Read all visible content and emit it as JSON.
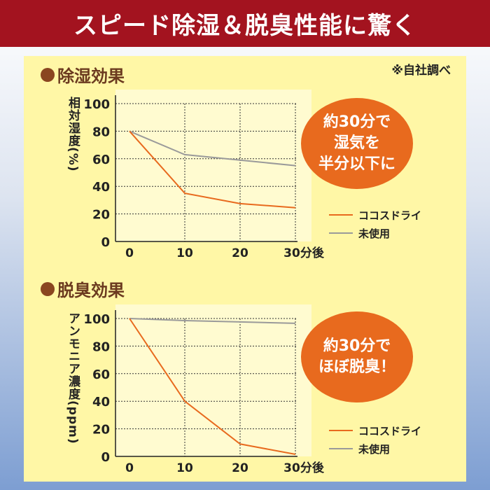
{
  "banner": {
    "title": "スピード除湿＆脱臭性能に驚く"
  },
  "note": "※自社調べ",
  "colors": {
    "cocos": "#e86a1e",
    "unused": "#9a9a9a",
    "banner": "#a3131f"
  },
  "chart_data": [
    {
      "type": "line",
      "section_title": "除湿効果",
      "ylabel": "相対湿度(%)",
      "x": [
        0,
        10,
        20,
        30
      ],
      "x_tick_labels": [
        "0",
        "10",
        "20",
        "30分後"
      ],
      "ylim": [
        0,
        100
      ],
      "y_ticks": [
        0,
        20,
        40,
        60,
        80,
        100
      ],
      "series": [
        {
          "name": "ココスドライ",
          "values": [
            80,
            35,
            27.5,
            24.5
          ]
        },
        {
          "name": "未使用",
          "values": [
            80,
            63,
            59,
            55
          ]
        }
      ],
      "callout": [
        "約30分で",
        "湿気を",
        "半分以下に"
      ]
    },
    {
      "type": "line",
      "section_title": "脱臭効果",
      "ylabel": "アンモニア濃度(ppm)",
      "x": [
        0,
        10,
        20,
        30
      ],
      "x_tick_labels": [
        "0",
        "10",
        "20",
        "30分後"
      ],
      "ylim": [
        0,
        100
      ],
      "y_ticks": [
        0,
        20,
        40,
        60,
        80,
        100
      ],
      "series": [
        {
          "name": "ココスドライ",
          "values": [
            100,
            40,
            9,
            1.5
          ]
        },
        {
          "name": "未使用",
          "values": [
            100,
            98.5,
            97.5,
            96.5
          ]
        }
      ],
      "callout": [
        "約30分で",
        "ほぼ脱臭！"
      ]
    }
  ]
}
